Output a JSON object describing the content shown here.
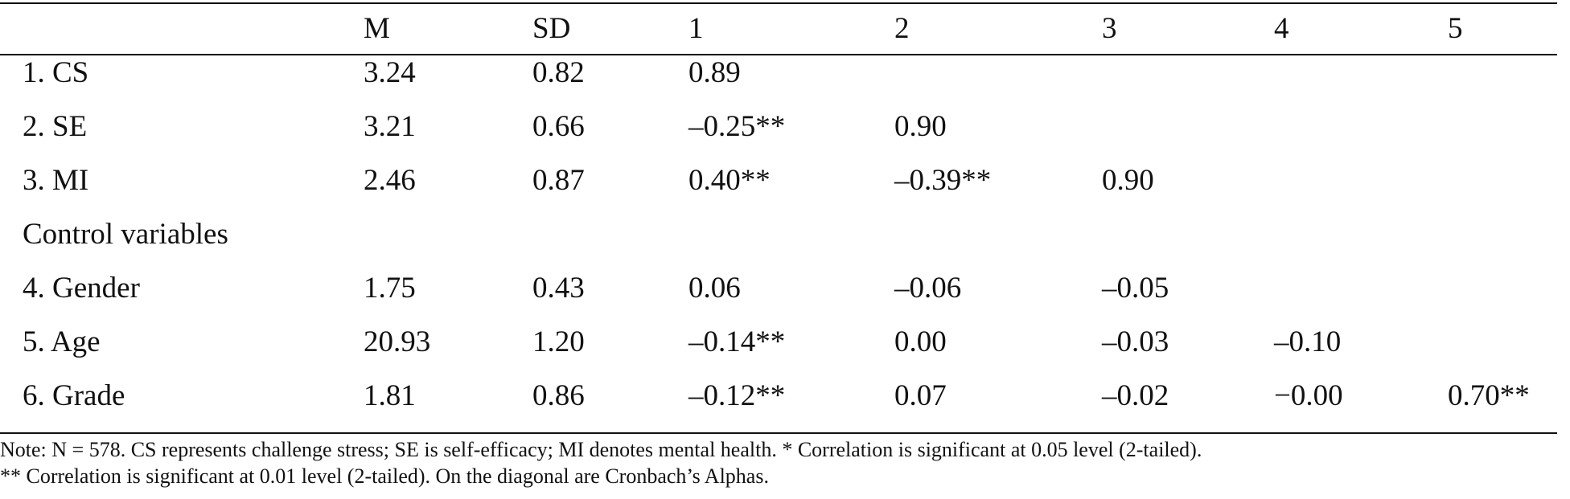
{
  "table": {
    "headers": {
      "label": "",
      "m": "M",
      "sd": "SD",
      "c1": "1",
      "c2": "2",
      "c3": "3",
      "c4": "4",
      "c5": "5"
    },
    "rows": [
      {
        "label": "1. CS",
        "m": "3.24",
        "sd": "0.82",
        "c1": "0.89",
        "c2": "",
        "c3": "",
        "c4": "",
        "c5": ""
      },
      {
        "label": "2. SE",
        "m": "3.21",
        "sd": "0.66",
        "c1": "–0.25**",
        "c2": "0.90",
        "c3": "",
        "c4": "",
        "c5": ""
      },
      {
        "label": "3. MI",
        "m": "2.46",
        "sd": "0.87",
        "c1": "0.40**",
        "c2": "–0.39**",
        "c3": "0.90",
        "c4": "",
        "c5": ""
      },
      {
        "label": "Control variables",
        "m": "",
        "sd": "",
        "c1": "",
        "c2": "",
        "c3": "",
        "c4": "",
        "c5": ""
      },
      {
        "label": "4. Gender",
        "m": "1.75",
        "sd": "0.43",
        "c1": "0.06",
        "c2": "–0.06",
        "c3": "–0.05",
        "c4": "",
        "c5": ""
      },
      {
        "label": "5. Age",
        "m": "20.93",
        "sd": "1.20",
        "c1": "–0.14**",
        "c2": "0.00",
        "c3": "–0.03",
        "c4": "–0.10",
        "c5": ""
      },
      {
        "label": "6. Grade",
        "m": "1.81",
        "sd": "0.86",
        "c1": "–0.12**",
        "c2": "0.07",
        "c3": "–0.02",
        "c4": "−0.00",
        "c5": "0.70**"
      }
    ]
  },
  "note": {
    "line1": "Note: N = 578. CS represents challenge stress; SE is self-efficacy; MI denotes mental health. * Correlation is significant at 0.05 level (2-tailed).",
    "line2": "** Correlation is significant at 0.01 level (2-tailed). On the diagonal are Cronbach’s Alphas."
  }
}
